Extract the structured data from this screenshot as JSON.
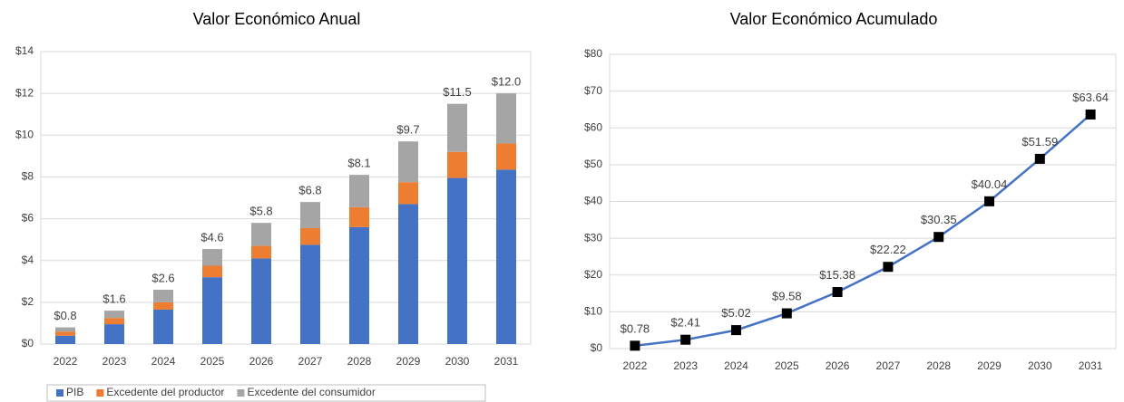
{
  "chart_data": [
    {
      "type": "stacked_bar",
      "title": "Valor Económico Anual",
      "categories": [
        "2022",
        "2023",
        "2024",
        "2025",
        "2026",
        "2027",
        "2028",
        "2029",
        "2030",
        "2031"
      ],
      "series": [
        {
          "name": "PIB",
          "color": "#4472c4",
          "values": [
            0.4,
            0.95,
            1.65,
            3.2,
            4.1,
            4.75,
            5.6,
            6.7,
            7.95,
            8.35
          ]
        },
        {
          "name": "Excedente del productor",
          "color": "#ed7d31",
          "values": [
            0.2,
            0.3,
            0.35,
            0.55,
            0.6,
            0.8,
            0.95,
            1.05,
            1.25,
            1.25
          ]
        },
        {
          "name": "Excedente del consumidor",
          "color": "#a5a5a5",
          "values": [
            0.2,
            0.35,
            0.6,
            0.8,
            1.1,
            1.25,
            1.55,
            1.95,
            2.3,
            2.4
          ]
        }
      ],
      "total_labels": [
        "$0.8",
        "$1.6",
        "$2.6",
        "$4.6",
        "$5.8",
        "$6.8",
        "$8.1",
        "$9.7",
        "$11.5",
        "$12.0"
      ],
      "ylim": [
        0,
        14
      ],
      "yticks": [
        {
          "value": 0,
          "label": "$0"
        },
        {
          "value": 2,
          "label": "$2"
        },
        {
          "value": 4,
          "label": "$4"
        },
        {
          "value": 6,
          "label": "$6"
        },
        {
          "value": 8,
          "label": "$8"
        },
        {
          "value": 10,
          "label": "$10"
        },
        {
          "value": 12,
          "label": "$12"
        },
        {
          "value": 14,
          "label": "$14"
        }
      ],
      "grid": true,
      "legend": "bottom"
    },
    {
      "type": "line",
      "title": "Valor Económico Acumulado",
      "categories": [
        "2022",
        "2023",
        "2024",
        "2025",
        "2026",
        "2027",
        "2028",
        "2029",
        "2030",
        "2031"
      ],
      "values": [
        0.78,
        2.41,
        5.02,
        9.58,
        15.38,
        22.22,
        30.35,
        40.04,
        51.59,
        63.64
      ],
      "value_labels": [
        "$0.78",
        "$2.41",
        "$5.02",
        "$9.58",
        "$15.38",
        "$22.22",
        "$30.35",
        "$40.04",
        "$51.59",
        "$63.64"
      ],
      "color": "#4472c4",
      "marker_color": "#000000",
      "ylim": [
        0,
        80
      ],
      "yticks": [
        {
          "value": 0,
          "label": "$0"
        },
        {
          "value": 10,
          "label": "$10"
        },
        {
          "value": 20,
          "label": "$20"
        },
        {
          "value": 30,
          "label": "$30"
        },
        {
          "value": 40,
          "label": "$40"
        },
        {
          "value": 50,
          "label": "$50"
        },
        {
          "value": 60,
          "label": "$60"
        },
        {
          "value": 70,
          "label": "$70"
        },
        {
          "value": 80,
          "label": "$80"
        }
      ],
      "grid": true
    }
  ]
}
